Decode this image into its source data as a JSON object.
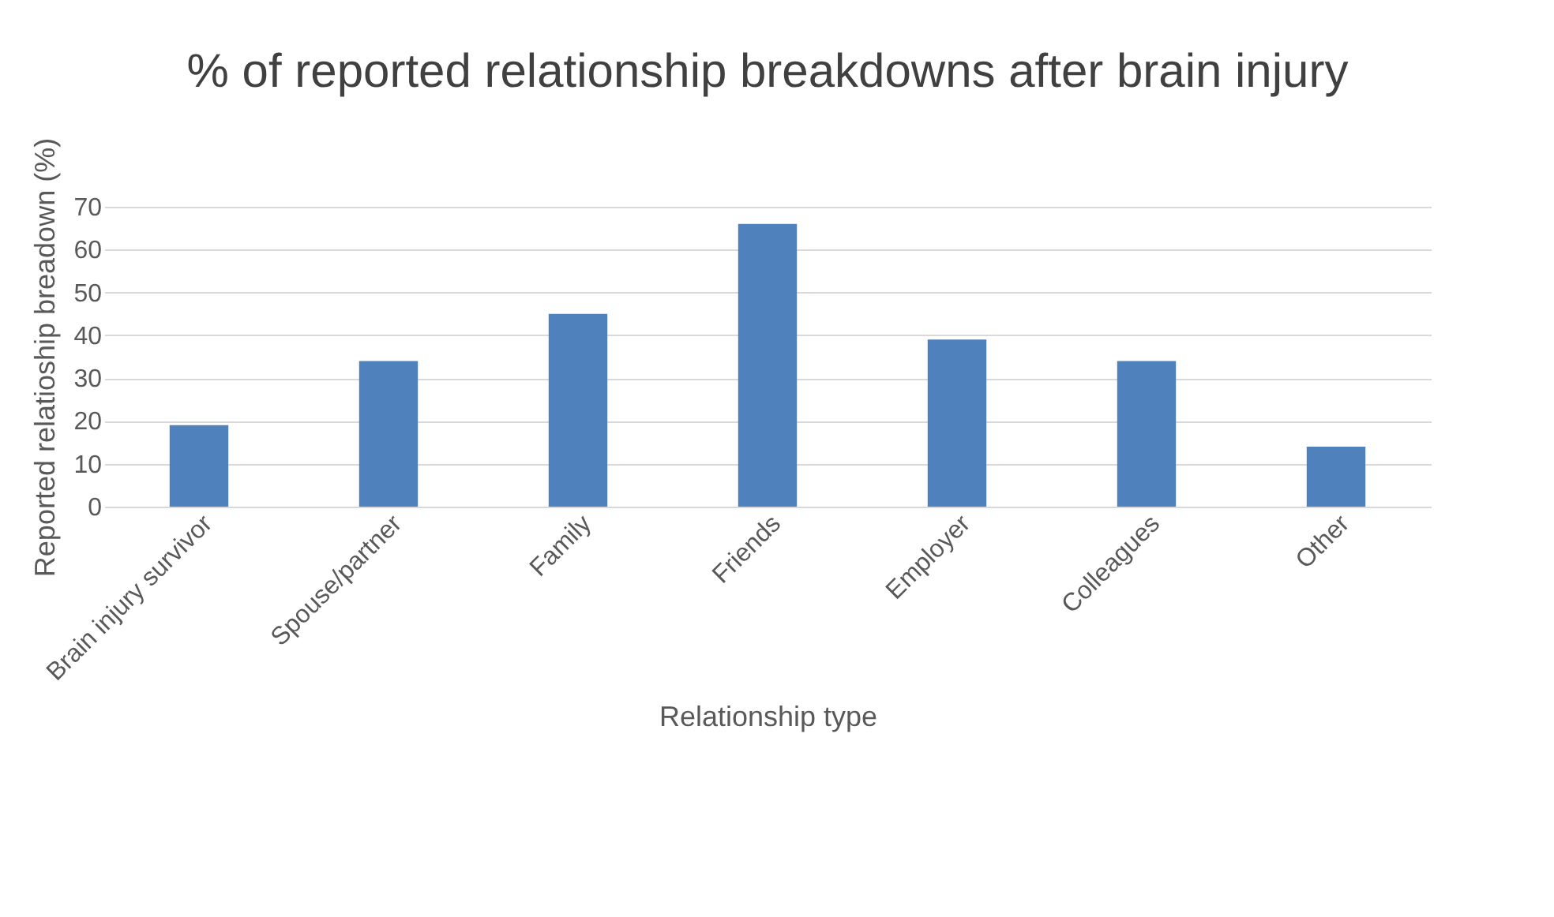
{
  "chart_data": {
    "type": "bar",
    "title": "% of reported relationship breakdowns after brain injury",
    "xlabel": "Relationship type",
    "ylabel": "Reported relatioship breadown (%)",
    "categories": [
      "Brain injury survivor",
      "Spouse/partner",
      "Family",
      "Friends",
      "Employer",
      "Colleagues",
      "Other"
    ],
    "values": [
      19,
      34,
      45,
      66,
      39,
      34,
      14
    ],
    "color": "#4f81bd",
    "ylim": [
      0,
      70
    ],
    "yticks": [
      0,
      10,
      20,
      30,
      40,
      50,
      60,
      70
    ],
    "grid": "y"
  }
}
